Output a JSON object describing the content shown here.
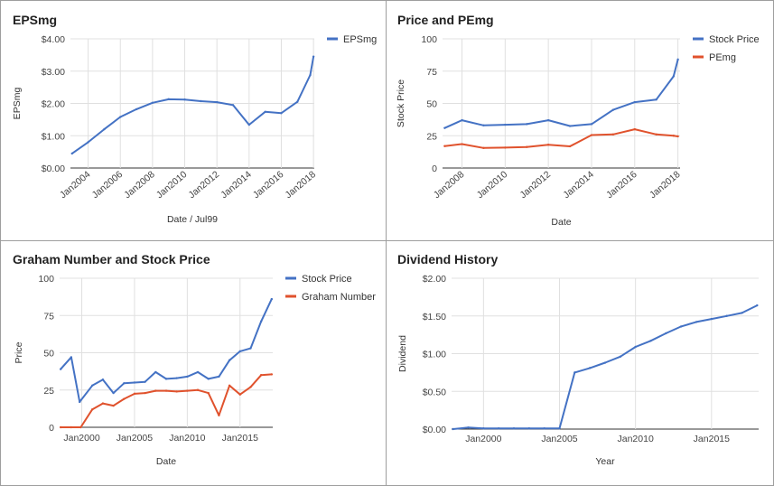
{
  "colors": {
    "blue": "#4472c4",
    "red": "#e0522d"
  },
  "chart_data": [
    {
      "id": "epsmg",
      "type": "line",
      "title": "EPSmg",
      "xlabel": "Date / Jul99",
      "ylabel": "EPSmg",
      "xlim": [
        2002.9,
        2018.05
      ],
      "ylim": [
        0,
        4
      ],
      "yticks": [
        0,
        1,
        2,
        3,
        4
      ],
      "ytick_labels": [
        "$0.00",
        "$1.00",
        "$2.00",
        "$3.00",
        "$4.00"
      ],
      "xticks": [
        2004,
        2006,
        2008,
        2010,
        2012,
        2014,
        2016,
        2018
      ],
      "xtick_labels": [
        "Jan2004",
        "Jan2006",
        "Jan2008",
        "Jan2010",
        "Jan2012",
        "Jan2014",
        "Jan2016",
        "Jan2018"
      ],
      "xtick_rotate": true,
      "grid": true,
      "legend": "top-right",
      "series": [
        {
          "name": "EPSmg",
          "color": "#4472c4",
          "x": [
            2003,
            2004,
            2005,
            2006,
            2007,
            2008,
            2009,
            2010,
            2011,
            2012,
            2013,
            2014,
            2015,
            2016,
            2017,
            2017.8,
            2018
          ],
          "y": [
            0.45,
            0.8,
            1.2,
            1.58,
            1.82,
            2.02,
            2.13,
            2.12,
            2.07,
            2.04,
            1.95,
            1.34,
            1.74,
            1.7,
            2.05,
            2.88,
            3.45
          ]
        }
      ]
    },
    {
      "id": "price-pemg",
      "type": "line",
      "title": "Price and PEmg",
      "xlabel": "Date",
      "ylabel": "Stock Price",
      "xlim": [
        2007.1,
        2018.1
      ],
      "ylim": [
        0,
        100
      ],
      "yticks": [
        0,
        25,
        50,
        75,
        100
      ],
      "ytick_labels": [
        "0",
        "25",
        "50",
        "75",
        "100"
      ],
      "xticks": [
        2008,
        2010,
        2012,
        2014,
        2016,
        2018
      ],
      "xtick_labels": [
        "Jan2008",
        "Jan2010",
        "Jan2012",
        "Jan2014",
        "Jan2016",
        "Jan2018"
      ],
      "xtick_rotate": true,
      "grid": true,
      "legend": "top-right",
      "series": [
        {
          "name": "Stock Price",
          "color": "#4472c4",
          "x": [
            2007.2,
            2008,
            2009,
            2010,
            2011,
            2012,
            2013,
            2014,
            2015,
            2016,
            2017,
            2017.8,
            2018
          ],
          "y": [
            31,
            37,
            33,
            33.5,
            34,
            37,
            32.5,
            34,
            45,
            51,
            53,
            71,
            84
          ]
        },
        {
          "name": "PEmg",
          "color": "#e0522d",
          "x": [
            2007.2,
            2008,
            2009,
            2010,
            2011,
            2012,
            2013,
            2014,
            2015,
            2016,
            2017,
            2017.8,
            2018
          ],
          "y": [
            17,
            18.5,
            15.5,
            15.8,
            16.3,
            18,
            16.8,
            25.5,
            26,
            30,
            26,
            25,
            24.5
          ]
        }
      ]
    },
    {
      "id": "graham",
      "type": "line",
      "title": "Graham Number and Stock Price",
      "xlabel": "Date",
      "ylabel": "Price",
      "xlim": [
        1997.9,
        2018.1
      ],
      "ylim": [
        0,
        100
      ],
      "yticks": [
        0,
        25,
        50,
        75,
        100
      ],
      "ytick_labels": [
        "0",
        "25",
        "50",
        "75",
        "100"
      ],
      "xticks": [
        2000,
        2005,
        2010,
        2015
      ],
      "xtick_labels": [
        "Jan2000",
        "Jan2005",
        "Jan2010",
        "Jan2015"
      ],
      "xtick_rotate": false,
      "grid": true,
      "legend": "top-right",
      "series": [
        {
          "name": "Stock Price",
          "color": "#4472c4",
          "x": [
            1998,
            1999,
            1999.8,
            2001,
            2002,
            2003,
            2004,
            2005,
            2006,
            2007,
            2008,
            2009,
            2010,
            2011,
            2012,
            2013,
            2014,
            2015,
            2016,
            2017,
            2018
          ],
          "y": [
            39,
            47,
            17,
            28,
            32,
            23,
            29.5,
            30,
            30.5,
            37,
            32.5,
            33,
            34,
            37,
            32.5,
            34,
            45,
            51,
            53,
            71,
            86
          ]
        },
        {
          "name": "Graham Number",
          "color": "#e0522d",
          "x": [
            1998,
            1999,
            1999.9,
            2001,
            2002,
            2003,
            2004,
            2005,
            2006,
            2007,
            2008,
            2009,
            2010,
            2011,
            2012,
            2013,
            2014,
            2015,
            2016,
            2017,
            2018
          ],
          "y": [
            0,
            0,
            0,
            12,
            16,
            14.5,
            19,
            22.5,
            23,
            24.5,
            24.5,
            24,
            24.5,
            25,
            23,
            8,
            28,
            22,
            27,
            35,
            35.5
          ]
        }
      ]
    },
    {
      "id": "dividend",
      "type": "line",
      "title": "Dividend History",
      "xlabel": "Year",
      "ylabel": "Dividend",
      "xlim": [
        1997.9,
        2018.1
      ],
      "ylim": [
        0,
        2
      ],
      "yticks": [
        0,
        0.5,
        1,
        1.5,
        2
      ],
      "ytick_labels": [
        "$0.00",
        "$0.50",
        "$1.00",
        "$1.50",
        "$2.00"
      ],
      "xticks": [
        2000,
        2005,
        2010,
        2015
      ],
      "xtick_labels": [
        "Jan2000",
        "Jan2005",
        "Jan2010",
        "Jan2015"
      ],
      "xtick_rotate": false,
      "grid": true,
      "legend": "none",
      "series": [
        {
          "name": "",
          "color": "#4472c4",
          "x": [
            1998,
            1999,
            2000,
            2001,
            2002,
            2003,
            2004,
            2005,
            2006,
            2007,
            2008,
            2009,
            2010,
            2011,
            2012,
            2013,
            2014,
            2015,
            2016,
            2017,
            2018
          ],
          "y": [
            0,
            0.02,
            0.01,
            0.01,
            0.01,
            0.01,
            0.01,
            0.01,
            0.75,
            0.81,
            0.88,
            0.96,
            1.09,
            1.17,
            1.27,
            1.36,
            1.42,
            1.46,
            1.5,
            1.54,
            1.64
          ]
        }
      ]
    }
  ]
}
